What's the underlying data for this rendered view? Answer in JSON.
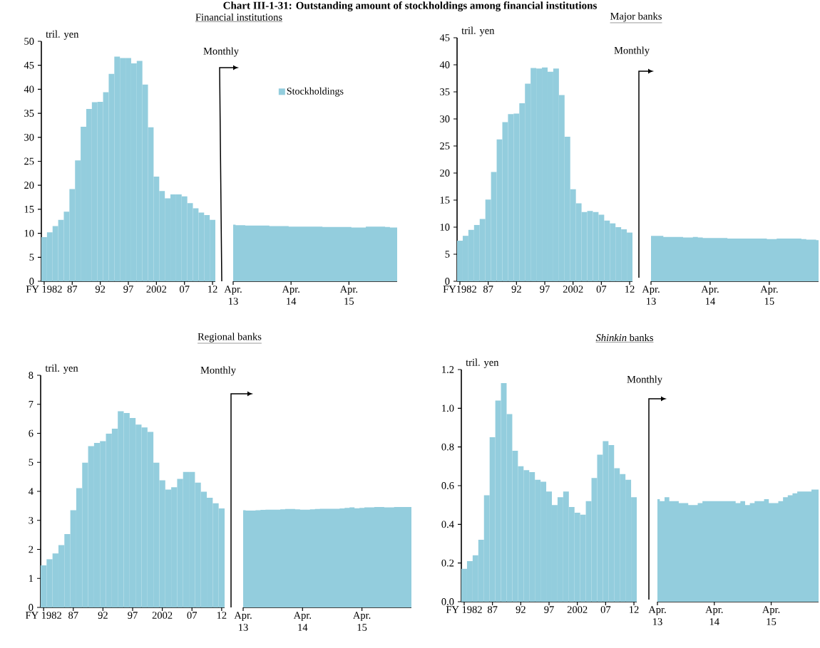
{
  "chart_data": [
    {
      "type": "other",
      "title": "Chart III-1-31: Outstanding amount of stockholdings among financial institutions"
    },
    {
      "type": "bar",
      "subtitle": "Financial institutions",
      "ylabel": "tril. yen",
      "categories": [
        "FY 1982",
        null,
        null,
        null,
        null,
        "87",
        null,
        null,
        null,
        null,
        "92",
        null,
        null,
        null,
        null,
        "97",
        null,
        null,
        null,
        null,
        "2002",
        null,
        null,
        null,
        null,
        "07",
        null,
        null,
        null,
        null,
        "12"
      ],
      "series": [
        {
          "color": "#93cddd",
          "values": [
            9.2,
            10.2,
            11.5,
            12.8,
            14.5,
            19.2,
            25.2,
            32.2,
            35.9,
            37.3,
            37.4,
            39.4,
            43.2,
            46.8,
            46.5,
            46.5,
            45.4,
            45.9,
            41.0,
            32.1,
            21.8,
            18.8,
            17.3,
            18.1,
            18.1,
            17.7,
            16.3,
            15.2,
            14.3,
            13.8,
            12.8
          ]
        }
      ],
      "ylim": [
        0,
        50
      ],
      "yticks": [
        0,
        5,
        10,
        15,
        20,
        25,
        30,
        35,
        40,
        45,
        50
      ]
    },
    {
      "type": "area",
      "annotations": [
        "Monthly"
      ],
      "legend": "top",
      "tick_labels": "x",
      "categories": [
        "Apr. 13",
        null,
        null,
        null,
        null,
        null,
        null,
        null,
        null,
        null,
        null,
        null,
        "Apr. 14",
        null,
        null,
        null,
        null,
        null,
        null,
        null,
        null,
        null,
        null,
        null,
        "Apr. 15",
        null,
        null,
        null,
        null,
        null,
        null,
        null,
        null,
        null,
        null
      ],
      "series": [
        {
          "name": "Stockholdings",
          "color": "#93cddd",
          "values": [
            11.8,
            11.7,
            11.7,
            11.6,
            11.6,
            11.6,
            11.6,
            11.6,
            11.5,
            11.5,
            11.5,
            11.5,
            11.4,
            11.4,
            11.4,
            11.4,
            11.4,
            11.4,
            11.4,
            11.3,
            11.3,
            11.3,
            11.3,
            11.3,
            11.3,
            11.2,
            11.2,
            11.2,
            11.4,
            11.4,
            11.4,
            11.4,
            11.3,
            11.2,
            11.2
          ]
        }
      ],
      "ylim": [
        0,
        50
      ]
    },
    {
      "type": "bar",
      "subtitle": "Major banks",
      "ylabel": "tril. yen",
      "categories": [
        "FY1982",
        null,
        null,
        null,
        null,
        "87",
        null,
        null,
        null,
        null,
        "92",
        null,
        null,
        null,
        null,
        "97",
        null,
        null,
        null,
        null,
        "2002",
        null,
        null,
        null,
        null,
        "07",
        null,
        null,
        null,
        null,
        "12"
      ],
      "series": [
        {
          "color": "#93cddd",
          "values": [
            7.5,
            8.4,
            9.5,
            10.4,
            11.5,
            15.1,
            20.2,
            26.2,
            29.4,
            30.9,
            31.0,
            32.9,
            36.5,
            39.4,
            39.3,
            39.5,
            38.7,
            39.3,
            34.4,
            26.7,
            17.0,
            14.4,
            12.8,
            13.0,
            12.8,
            12.3,
            11.2,
            10.7,
            10.0,
            9.6,
            9.0
          ]
        }
      ],
      "ylim": [
        0,
        45
      ],
      "yticks": [
        0,
        5,
        10,
        15,
        20,
        25,
        30,
        35,
        40,
        45
      ]
    },
    {
      "type": "area",
      "annotations": [
        "Monthly"
      ],
      "tick_labels": "x",
      "categories": [
        "Apr. 13",
        null,
        null,
        null,
        null,
        null,
        null,
        null,
        null,
        null,
        null,
        null,
        "Apr. 14",
        null,
        null,
        null,
        null,
        null,
        null,
        null,
        null,
        null,
        null,
        null,
        "Apr. 15",
        null,
        null,
        null,
        null,
        null,
        null,
        null,
        null,
        null,
        null
      ],
      "series": [
        {
          "color": "#93cddd",
          "values": [
            8.4,
            8.4,
            8.4,
            8.2,
            8.2,
            8.2,
            8.2,
            8.1,
            8.1,
            8.2,
            8.1,
            8.0,
            8.0,
            8.0,
            8.0,
            8.0,
            7.9,
            7.9,
            7.9,
            7.9,
            7.9,
            7.9,
            7.9,
            7.9,
            7.8,
            7.8,
            7.9,
            7.9,
            7.9,
            7.9,
            7.9,
            7.8,
            7.7,
            7.7,
            7.6
          ]
        }
      ],
      "ylim": [
        0,
        45
      ]
    },
    {
      "type": "bar",
      "subtitle": "Regional banks",
      "ylabel": "tril. yen",
      "categories": [
        "FY 1982",
        null,
        null,
        null,
        null,
        "87",
        null,
        null,
        null,
        null,
        "92",
        null,
        null,
        null,
        null,
        "97",
        null,
        null,
        null,
        null,
        "2002",
        null,
        null,
        null,
        null,
        "07",
        null,
        null,
        null,
        null,
        "12"
      ],
      "series": [
        {
          "color": "#93cddd",
          "values": [
            1.45,
            1.66,
            1.86,
            2.15,
            2.53,
            3.35,
            4.11,
            4.99,
            5.56,
            5.67,
            5.73,
            5.99,
            6.16,
            6.76,
            6.7,
            6.53,
            6.3,
            6.2,
            6.05,
            4.99,
            4.38,
            4.06,
            4.14,
            4.43,
            4.67,
            4.67,
            4.3,
            3.99,
            3.78,
            3.59,
            3.41
          ]
        }
      ],
      "ylim": [
        0,
        8
      ],
      "yticks": [
        0,
        1,
        2,
        3,
        4,
        5,
        6,
        7,
        8
      ]
    },
    {
      "type": "area",
      "annotations": [
        "Monthly"
      ],
      "tick_labels": "x",
      "categories": [
        "Apr. 13",
        null,
        null,
        null,
        null,
        null,
        null,
        null,
        null,
        null,
        null,
        null,
        "Apr. 14",
        null,
        null,
        null,
        null,
        null,
        null,
        null,
        null,
        null,
        null,
        null,
        "Apr. 15",
        null,
        null,
        null,
        null,
        null,
        null,
        null,
        null,
        null,
        null
      ],
      "series": [
        {
          "color": "#93cddd",
          "values": [
            3.35,
            3.34,
            3.34,
            3.35,
            3.36,
            3.37,
            3.37,
            3.37,
            3.38,
            3.39,
            3.39,
            3.38,
            3.37,
            3.37,
            3.38,
            3.39,
            3.4,
            3.4,
            3.4,
            3.4,
            3.41,
            3.43,
            3.45,
            3.42,
            3.43,
            3.45,
            3.45,
            3.46,
            3.46,
            3.45,
            3.45,
            3.46,
            3.46,
            3.46,
            3.46
          ]
        }
      ],
      "ylim": [
        0,
        8
      ]
    },
    {
      "type": "bar",
      "subtitle": "*Shinkin* banks",
      "ylabel": "tril. yen",
      "categories": [
        "FY 1982",
        null,
        null,
        null,
        null,
        "87",
        null,
        null,
        null,
        null,
        "92",
        null,
        null,
        null,
        null,
        "97",
        null,
        null,
        null,
        null,
        "2002",
        null,
        null,
        null,
        null,
        "07",
        null,
        null,
        null,
        null,
        "12"
      ],
      "series": [
        {
          "color": "#93cddd",
          "values": [
            0.17,
            0.21,
            0.24,
            0.32,
            0.55,
            0.85,
            1.04,
            1.13,
            0.97,
            0.78,
            0.7,
            0.68,
            0.67,
            0.63,
            0.62,
            0.57,
            0.5,
            0.54,
            0.57,
            0.49,
            0.46,
            0.45,
            0.52,
            0.64,
            0.76,
            0.83,
            0.81,
            0.69,
            0.66,
            0.63,
            0.54
          ]
        }
      ],
      "ylim": [
        0,
        1.2
      ],
      "yticks": [
        {
          "value": 0,
          "label": "0.0"
        },
        0.2,
        0.4,
        0.6,
        0.8,
        {
          "value": 1,
          "label": "1.0"
        },
        1.2
      ]
    },
    {
      "type": "area",
      "annotations": [
        "Monthly"
      ],
      "tick_labels": "x",
      "categories": [
        "Apr. 13",
        null,
        null,
        null,
        null,
        null,
        null,
        null,
        null,
        null,
        null,
        null,
        "Apr. 14",
        null,
        null,
        null,
        null,
        null,
        null,
        null,
        null,
        null,
        null,
        null,
        "Apr. 15",
        null,
        null,
        null,
        null,
        null,
        null,
        null,
        null,
        null,
        null
      ],
      "series": [
        {
          "color": "#93cddd",
          "values": [
            0.53,
            0.52,
            0.54,
            0.52,
            0.52,
            0.51,
            0.51,
            0.5,
            0.5,
            0.51,
            0.52,
            0.52,
            0.52,
            0.52,
            0.52,
            0.52,
            0.52,
            0.51,
            0.52,
            0.5,
            0.51,
            0.52,
            0.52,
            0.53,
            0.51,
            0.51,
            0.52,
            0.54,
            0.55,
            0.56,
            0.57,
            0.57,
            0.57,
            0.58,
            0.58
          ]
        }
      ],
      "ylim": [
        0,
        1.2
      ]
    }
  ]
}
